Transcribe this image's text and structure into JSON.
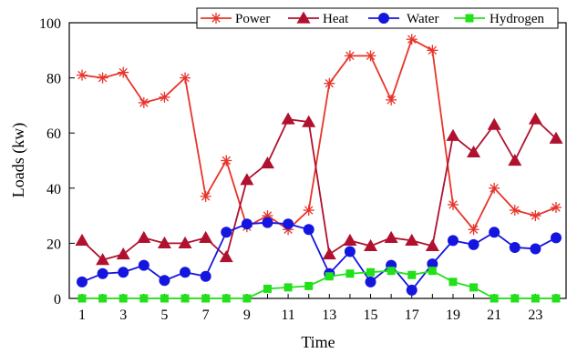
{
  "chart_data": {
    "type": "line",
    "xlabel": "Time",
    "ylabel": "Loads (kw)",
    "x": [
      1,
      2,
      3,
      4,
      5,
      6,
      7,
      8,
      9,
      10,
      11,
      12,
      13,
      14,
      15,
      16,
      17,
      18,
      19,
      20,
      21,
      22,
      23,
      24
    ],
    "xticks": [
      1,
      3,
      5,
      7,
      9,
      11,
      13,
      15,
      17,
      19,
      21,
      23
    ],
    "xlim": [
      1,
      24
    ],
    "yticks": [
      0,
      20,
      40,
      60,
      80,
      100
    ],
    "ylim": [
      0,
      100
    ],
    "grid": false,
    "legend_position": "top-right",
    "series": [
      {
        "name": "Power",
        "color": "#e8342a",
        "marker": "star",
        "values": [
          81,
          80,
          82,
          71,
          73,
          80,
          37,
          50,
          26,
          30,
          25,
          32,
          78,
          88,
          88,
          72,
          94,
          90,
          34,
          25,
          40,
          32,
          30,
          33
        ]
      },
      {
        "name": "Heat",
        "color": "#b0112e",
        "marker": "triangle",
        "values": [
          21,
          14,
          16,
          22,
          20,
          20,
          22,
          15,
          43,
          49,
          65,
          64,
          16,
          21,
          19,
          22,
          21,
          19,
          59,
          53,
          63,
          50,
          65,
          58
        ]
      },
      {
        "name": "Water",
        "color": "#1515e0",
        "marker": "circle",
        "values": [
          6,
          9,
          9.5,
          12,
          6.5,
          9.5,
          8,
          24,
          27,
          27.5,
          27,
          25,
          9,
          17,
          6,
          12,
          3,
          12.5,
          21,
          19.5,
          24,
          18.5,
          18,
          22
        ]
      },
      {
        "name": "Hydrogen",
        "color": "#22e01a",
        "marker": "square",
        "values": [
          0,
          0,
          0,
          0,
          0,
          0,
          0,
          0,
          0,
          3.5,
          4,
          4.5,
          8,
          9,
          9.5,
          10,
          8.5,
          10,
          6,
          4,
          0,
          0,
          0,
          0
        ]
      }
    ]
  }
}
